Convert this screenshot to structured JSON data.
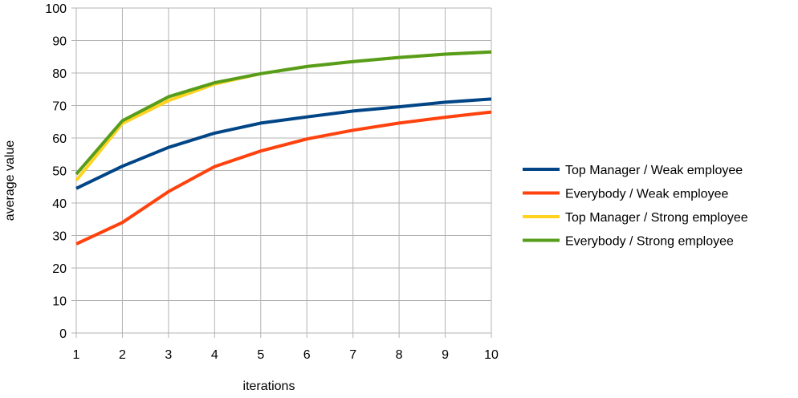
{
  "chart_data": {
    "type": "line",
    "title": "",
    "xlabel": "iterations",
    "ylabel": "average value",
    "x": [
      1,
      2,
      3,
      4,
      5,
      6,
      7,
      8,
      9,
      10
    ],
    "xlim": [
      1,
      10
    ],
    "ylim": [
      0,
      100
    ],
    "yticks": [
      0,
      10,
      20,
      30,
      40,
      50,
      60,
      70,
      80,
      90,
      100
    ],
    "grid": true,
    "legend_position": "right",
    "series": [
      {
        "name": "Top Manager / Weak employee",
        "color": "#004586",
        "values": [
          44.5,
          51.3,
          57.1,
          61.5,
          64.6,
          66.5,
          68.3,
          69.6,
          71.0,
          72.0
        ]
      },
      {
        "name": "Everybody / Weak employee",
        "color": "#ff420e",
        "values": [
          27.4,
          34.0,
          43.5,
          51.2,
          56.0,
          59.7,
          62.4,
          64.6,
          66.4,
          68.0
        ]
      },
      {
        "name": "Top Manager / Strong employee",
        "color": "#ffd320",
        "values": [
          47.0,
          64.5,
          71.5,
          76.6,
          79.8,
          82.0,
          83.5,
          84.8,
          85.8,
          86.5
        ]
      },
      {
        "name": "Everybody / Strong employee",
        "color": "#579d1c",
        "values": [
          48.9,
          65.3,
          72.7,
          77.0,
          79.8,
          82.0,
          83.5,
          84.8,
          85.8,
          86.5
        ]
      }
    ]
  }
}
